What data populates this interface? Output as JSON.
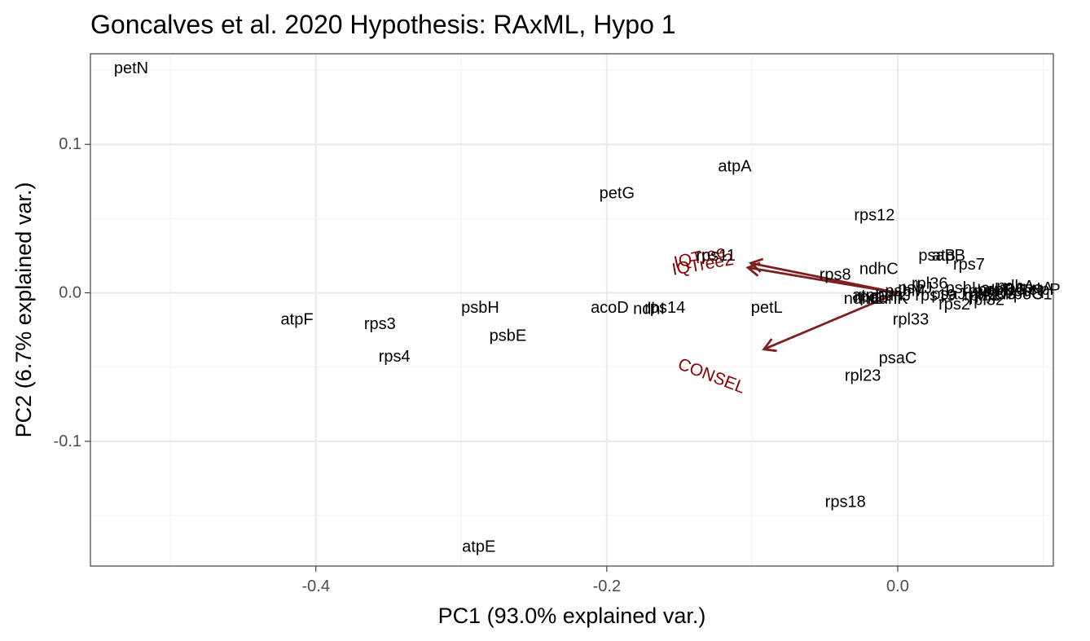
{
  "chart_data": {
    "type": "scatter",
    "title": "Goncalves et al. 2020 Hypothesis: RAxML,  Hypo 1",
    "xlabel": "PC1 (93.0% explained var.)",
    "ylabel": "PC2 (6.7% explained var.)",
    "xlim": [
      -0.555,
      0.107
    ],
    "ylim": [
      -0.184,
      0.161
    ],
    "x_ticks": [
      -0.4,
      -0.2,
      0.0
    ],
    "x_tick_labels": [
      "-0.4",
      "-0.2",
      "0.0"
    ],
    "y_ticks": [
      -0.1,
      0.0,
      0.1
    ],
    "y_tick_labels": [
      "-0.1",
      "0.0",
      "0.1"
    ],
    "grid": true,
    "legend": "none",
    "colors": {
      "points": "#000000",
      "loadings": "#7f2020",
      "loading_labels": "#8b0000"
    },
    "points": [
      {
        "label": "petN",
        "x": -0.527,
        "y": 0.151
      },
      {
        "label": "atpA",
        "x": -0.112,
        "y": 0.085
      },
      {
        "label": "petG",
        "x": -0.193,
        "y": 0.067
      },
      {
        "label": "rps12",
        "x": -0.016,
        "y": 0.052
      },
      {
        "label": "psaB",
        "x": 0.027,
        "y": 0.025
      },
      {
        "label": "atpB",
        "x": 0.035,
        "y": 0.025
      },
      {
        "label": "rps7",
        "x": 0.049,
        "y": 0.019
      },
      {
        "label": "rps11",
        "x": -0.125,
        "y": 0.025
      },
      {
        "label": "ndhC",
        "x": -0.013,
        "y": 0.016
      },
      {
        "label": "rps8",
        "x": -0.043,
        "y": 0.012
      },
      {
        "label": "rpl36",
        "x": 0.022,
        "y": 0.006
      },
      {
        "label": "psbJ",
        "x": 0.012,
        "y": 0.003
      },
      {
        "label": "psbL",
        "x": 0.045,
        "y": 0.003
      },
      {
        "label": "ndhA",
        "x": 0.081,
        "y": 0.004
      },
      {
        "label": "psbD",
        "x": 0.068,
        "y": 0.002
      },
      {
        "label": "rpl2",
        "x": 0.054,
        "y": 0.001
      },
      {
        "label": "clpP",
        "x": 0.101,
        "y": 0.002
      },
      {
        "label": "psbN",
        "x": 0.087,
        "y": 0.001
      },
      {
        "label": "rpoA",
        "x": 0.095,
        "y": 0.003
      },
      {
        "label": "rpl16",
        "x": 0.075,
        "y": 0.002
      },
      {
        "label": "rpl20",
        "x": 0.062,
        "y": -0.001
      },
      {
        "label": "rpoC1",
        "x": 0.091,
        "y": -0.001
      },
      {
        "label": "psaJ",
        "x": 0.035,
        "y": -0.001
      },
      {
        "label": "rpl22",
        "x": 0.058,
        "y": -0.002
      },
      {
        "label": "ycf3",
        "x": 0.071,
        "y": -0.001
      },
      {
        "label": "psbT",
        "x": 0.065,
        "y": 0.001
      },
      {
        "label": "rps19",
        "x": 0.026,
        "y": -0.002
      },
      {
        "label": "psbM",
        "x": 0.005,
        "y": 0.001
      },
      {
        "label": "ndhJ",
        "x": -0.003,
        "y": -0.002
      },
      {
        "label": "ndhK",
        "x": -0.006,
        "y": -0.004
      },
      {
        "label": "rpoB",
        "x": -0.018,
        "y": -0.003
      },
      {
        "label": "ndhE",
        "x": -0.024,
        "y": -0.004
      },
      {
        "label": "atpI",
        "x": -0.022,
        "y": -0.002
      },
      {
        "label": "rps2",
        "x": 0.039,
        "y": -0.008
      },
      {
        "label": "rpl32",
        "x": 0.061,
        "y": -0.005
      },
      {
        "label": "rpl33",
        "x": 0.009,
        "y": -0.018
      },
      {
        "label": "acoD",
        "x": -0.198,
        "y": -0.01
      },
      {
        "label": "ndhI",
        "x": -0.171,
        "y": -0.011
      },
      {
        "label": "rps14",
        "x": -0.16,
        "y": -0.01
      },
      {
        "label": "petL",
        "x": -0.09,
        "y": -0.01
      },
      {
        "label": "psbH",
        "x": -0.287,
        "y": -0.01
      },
      {
        "label": "atpF",
        "x": -0.413,
        "y": -0.018
      },
      {
        "label": "rps3",
        "x": -0.356,
        "y": -0.021
      },
      {
        "label": "psbE",
        "x": -0.268,
        "y": -0.029
      },
      {
        "label": "rps4",
        "x": -0.346,
        "y": -0.043
      },
      {
        "label": "psaC",
        "x": 0.0,
        "y": -0.044
      },
      {
        "label": "rpl23",
        "x": -0.024,
        "y": -0.056
      },
      {
        "label": "rps18",
        "x": -0.036,
        "y": -0.141
      },
      {
        "label": "atpE",
        "x": -0.288,
        "y": -0.171
      }
    ],
    "loadings": [
      {
        "label": "IQTree",
        "x": -0.101,
        "y": 0.02,
        "label_x": -0.136,
        "label_y": 0.024,
        "angle": 13
      },
      {
        "label": "IQTree2",
        "x": -0.103,
        "y": 0.017,
        "label_x": -0.134,
        "label_y": 0.019,
        "angle": 10
      },
      {
        "label": "CONSEL",
        "x": -0.092,
        "y": -0.038,
        "label_x": -0.128,
        "label_y": -0.056,
        "angle": -21
      }
    ]
  }
}
